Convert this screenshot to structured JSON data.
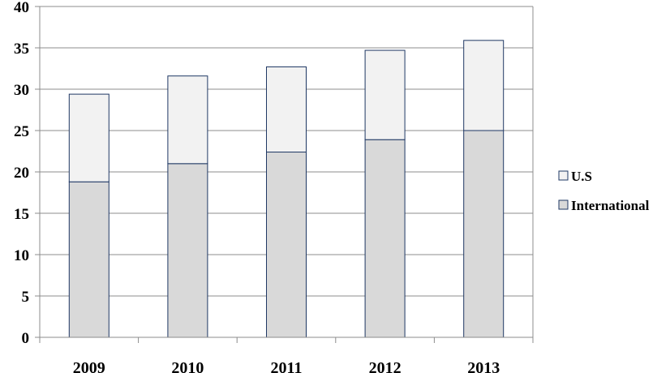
{
  "chart_data": {
    "type": "bar",
    "stacked": true,
    "title": "",
    "xlabel": "",
    "ylabel": "",
    "categories": [
      "2009",
      "2010",
      "2011",
      "2012",
      "2013"
    ],
    "series": [
      {
        "name": "International",
        "values": [
          18.8,
          21.0,
          22.4,
          23.9,
          25.0
        ],
        "color": "#d9d9d9"
      },
      {
        "name": "U.S",
        "values": [
          10.6,
          10.6,
          10.3,
          10.8,
          10.9
        ],
        "color": "#f2f2f2"
      }
    ],
    "ylim": [
      0,
      40
    ],
    "yticks": [
      "0",
      "5",
      "10",
      "15",
      "20",
      "25",
      "30",
      "35",
      "40"
    ],
    "grid": true,
    "legend": {
      "position": "right",
      "order": [
        "U.S",
        "International"
      ]
    },
    "colors": {
      "bar_border": "#1f3864",
      "grid": "#8c8c8c",
      "axis": "#8c8c8c"
    }
  }
}
